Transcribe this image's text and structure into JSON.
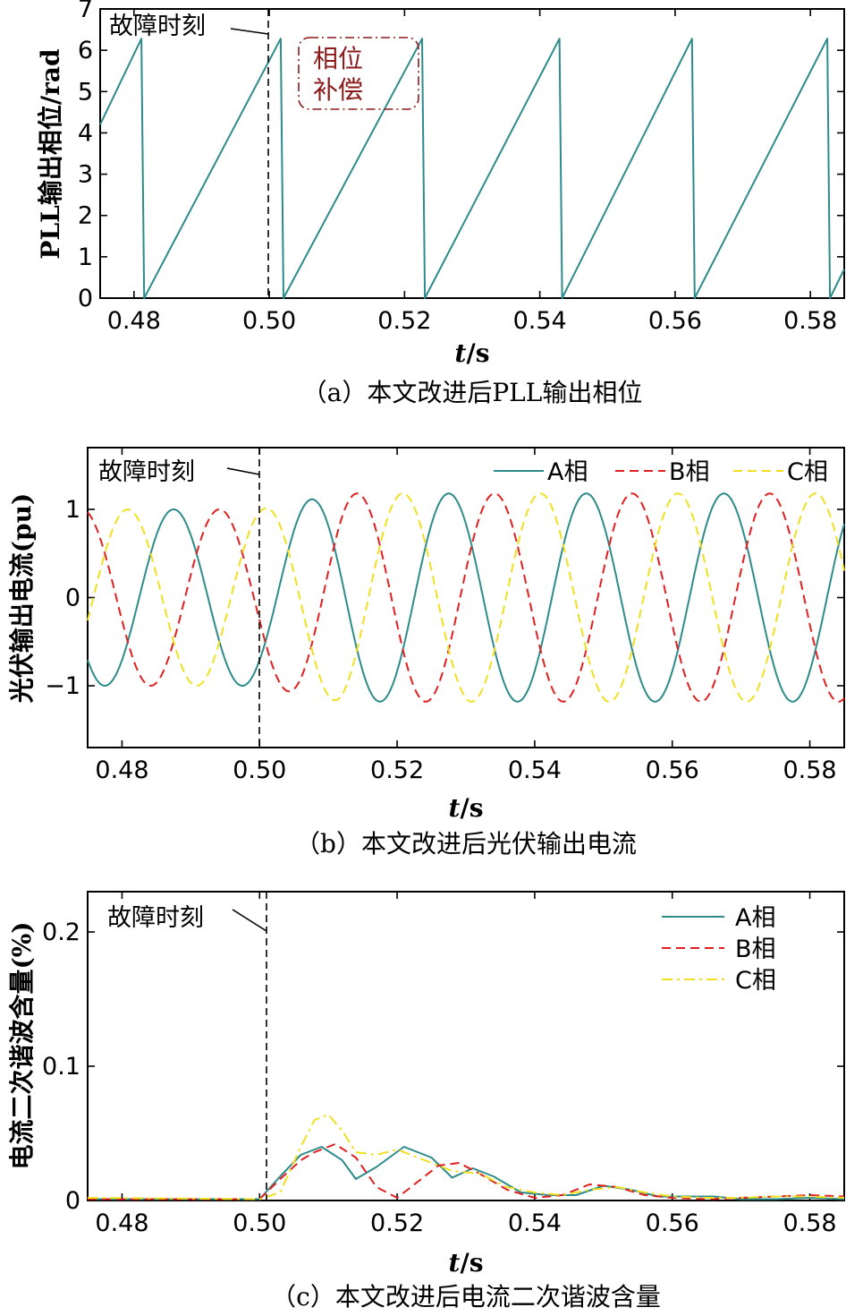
{
  "charts": [
    {
      "caption": "（a）本文改进后PLL输出相位",
      "annotation": "故障时刻",
      "note": "相位\n补偿",
      "chart_data": {
        "type": "line",
        "ylabel": "PLL输出相位/rad",
        "xlabel": "t/s",
        "xlim": [
          0.475,
          0.585
        ],
        "ylim": [
          0,
          7
        ],
        "xticks": [
          "0.48",
          "0.50",
          "0.52",
          "0.54",
          "0.56",
          "0.58"
        ],
        "yticks": [
          "0",
          "1",
          "2",
          "3",
          "4",
          "5",
          "6",
          "7"
        ],
        "fault_time": 0.5,
        "series": [
          {
            "color": "#2e8b8b",
            "style": "solid",
            "x": [
              0.475,
              0.4811,
              0.4811,
              0.4815,
              0.5017,
              0.5017,
              0.5021,
              0.5226,
              0.5226,
              0.523,
              0.5429,
              0.5429,
              0.5433,
              0.5625,
              0.5625,
              0.5629,
              0.5825,
              0.5825,
              0.5829,
              0.585
            ],
            "y": [
              4.2,
              6.28,
              6.28,
              0,
              6.28,
              6.28,
              0,
              6.28,
              6.28,
              0,
              6.28,
              6.28,
              0,
              6.28,
              6.28,
              0,
              6.28,
              6.28,
              0,
              0.7
            ]
          }
        ]
      }
    },
    {
      "caption": "（b）本文改进后光伏输出电流",
      "annotation": "故障时刻",
      "chart_data": {
        "type": "line",
        "ylabel": "光伏输出电流(pu)",
        "xlabel": "t/s",
        "xlim": [
          0.475,
          0.585
        ],
        "ylim": [
          -1.7,
          1.7
        ],
        "xticks": [
          "0.48",
          "0.50",
          "0.52",
          "0.54",
          "0.56",
          "0.58"
        ],
        "yticks": [
          "-1",
          "0",
          "1"
        ],
        "fault_time": 0.5,
        "legend_position": "top-right",
        "series": [
          {
            "name": "A相",
            "color": "#2e8b8b",
            "style": "solid",
            "amp_pre": 1.0,
            "amp_post": 1.18,
            "phase_deg": 0
          },
          {
            "name": "B相",
            "color": "#e02020",
            "style": "dashed",
            "amp_pre": 1.0,
            "amp_post": 1.18,
            "phase_deg": -120
          },
          {
            "name": "C相",
            "color": "#f0e020",
            "style": "dashed",
            "amp_pre": 1.0,
            "amp_post": 1.18,
            "phase_deg": 120
          }
        ],
        "frequency_hz": 50
      }
    },
    {
      "caption": "（c）本文改进后电流二次谐波含量",
      "annotation": "故障时刻",
      "chart_data": {
        "type": "line",
        "ylabel": "电流二次谐波含量(%)",
        "xlabel": "t/s",
        "xlim": [
          0.475,
          0.585
        ],
        "ylim": [
          0,
          0.23
        ],
        "xticks": [
          "0.48",
          "0.50",
          "0.52",
          "0.54",
          "0.56",
          "0.58"
        ],
        "yticks": [
          "0",
          "0.1",
          "0.2"
        ],
        "fault_time": 0.5,
        "legend_position": "top-right",
        "series": [
          {
            "name": "A相",
            "color": "#2e8b8b",
            "style": "solid",
            "x": [
              0.475,
              0.5,
              0.503,
              0.506,
              0.509,
              0.512,
              0.514,
              0.517,
              0.521,
              0.525,
              0.528,
              0.531,
              0.534,
              0.538,
              0.542,
              0.546,
              0.55,
              0.554,
              0.558,
              0.562,
              0.566,
              0.57,
              0.575,
              0.58,
              0.585
            ],
            "y": [
              0.001,
              0.001,
              0.018,
              0.034,
              0.04,
              0.03,
              0.016,
              0.025,
              0.04,
              0.032,
              0.017,
              0.024,
              0.018,
              0.006,
              0.004,
              0.004,
              0.011,
              0.008,
              0.003,
              0.003,
              0.003,
              0.001,
              0.001,
              0.002,
              0.001
            ]
          },
          {
            "name": "B相",
            "color": "#e02020",
            "style": "dashed",
            "x": [
              0.475,
              0.5,
              0.503,
              0.506,
              0.508,
              0.511,
              0.514,
              0.517,
              0.52,
              0.523,
              0.526,
              0.529,
              0.532,
              0.536,
              0.54,
              0.544,
              0.548,
              0.552,
              0.556,
              0.56,
              0.565,
              0.57,
              0.575,
              0.58,
              0.585
            ],
            "y": [
              0.001,
              0.001,
              0.016,
              0.03,
              0.036,
              0.042,
              0.032,
              0.01,
              0.002,
              0.014,
              0.026,
              0.028,
              0.02,
              0.008,
              0.002,
              0.004,
              0.012,
              0.01,
              0.004,
              0.002,
              0.001,
              0.002,
              0.003,
              0.004,
              0.003
            ]
          },
          {
            "name": "C相",
            "color": "#f0e020",
            "style": "dashdot",
            "x": [
              0.475,
              0.5,
              0.503,
              0.506,
              0.508,
              0.51,
              0.512,
              0.514,
              0.517,
              0.52,
              0.524,
              0.528,
              0.532,
              0.536,
              0.54,
              0.544,
              0.548,
              0.552,
              0.556,
              0.56,
              0.565,
              0.57,
              0.575,
              0.58,
              0.585
            ],
            "y": [
              0.002,
              0.001,
              0.006,
              0.04,
              0.06,
              0.064,
              0.052,
              0.036,
              0.034,
              0.038,
              0.03,
              0.022,
              0.02,
              0.01,
              0.006,
              0.004,
              0.008,
              0.01,
              0.006,
              0.003,
              0.002,
              0.002,
              0.003,
              0.003,
              0.002
            ]
          }
        ]
      }
    }
  ]
}
